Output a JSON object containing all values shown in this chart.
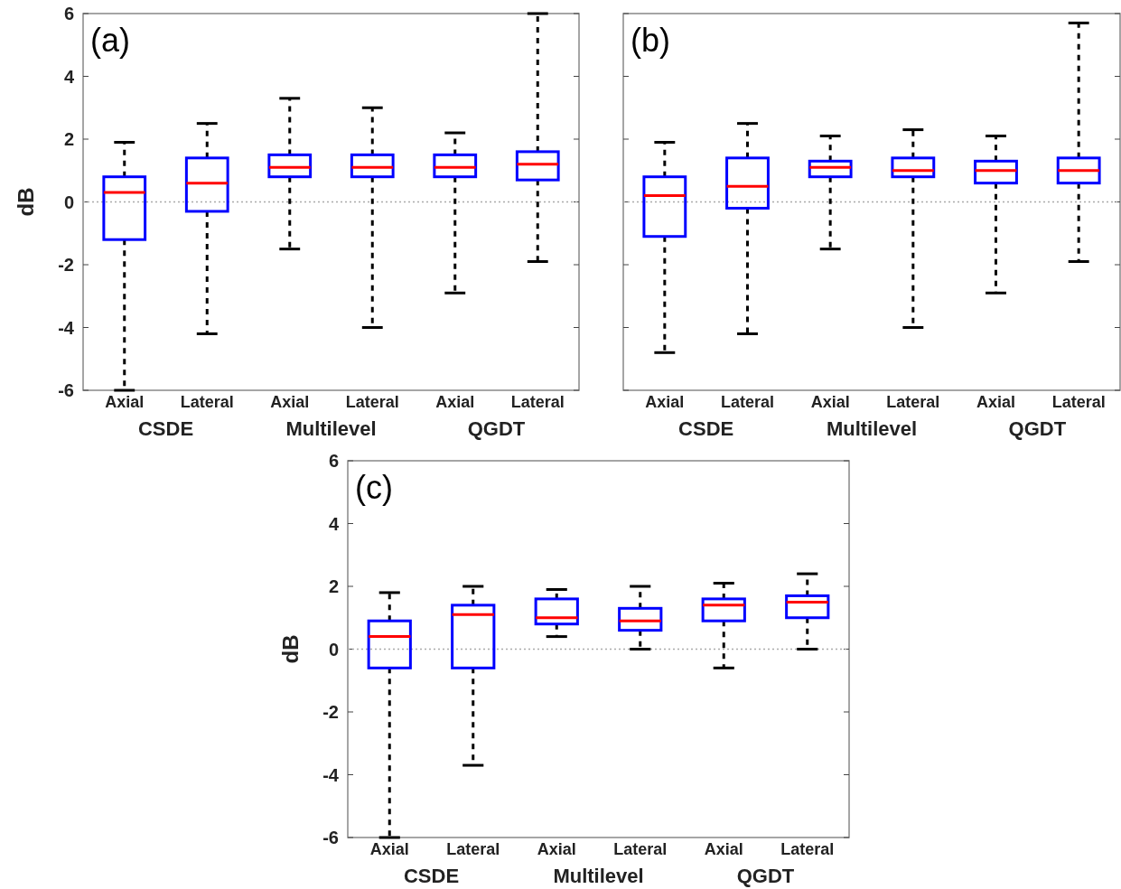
{
  "chart_data": [
    {
      "type": "box",
      "title": "(a)",
      "ylabel": "dB",
      "categories": [
        "Axial",
        "Lateral",
        "Axial",
        "Lateral",
        "Axial",
        "Lateral"
      ],
      "annotations": [
        "CSDE",
        "Multilevel",
        "QGDT"
      ],
      "ylim": [
        -6,
        6
      ],
      "yticks": [
        -6,
        -4,
        -2,
        0,
        2,
        4,
        6
      ],
      "ref_lines": [
        {
          "axis": "y",
          "value": 0,
          "line_style": "dotted",
          "color": "#aaaaaa"
        }
      ],
      "grid": false,
      "series": [
        {
          "color": "#0000ff",
          "boxes": [
            {
              "low": -6,
              "q1": -1.2,
              "median": 0.3,
              "q3": 0.8,
              "high": 1.9
            },
            {
              "low": -4.2,
              "q1": -0.3,
              "median": 0.6,
              "q3": 1.4,
              "high": 2.5
            },
            {
              "low": -1.5,
              "q1": 0.8,
              "median": 1.1,
              "q3": 1.5,
              "high": 3.3
            },
            {
              "low": -4.0,
              "q1": 0.8,
              "median": 1.1,
              "q3": 1.5,
              "high": 3.0
            },
            {
              "low": -2.9,
              "q1": 0.8,
              "median": 1.1,
              "q3": 1.5,
              "high": 2.2
            },
            {
              "low": -1.9,
              "q1": 0.7,
              "median": 1.2,
              "q3": 1.6,
              "high": 6
            }
          ]
        }
      ]
    },
    {
      "type": "box",
      "title": "(b)",
      "categories": [
        "Axial",
        "Lateral",
        "Axial",
        "Lateral",
        "Axial",
        "Lateral"
      ],
      "annotations": [
        "CSDE",
        "Multilevel",
        "QGDT"
      ],
      "ylim": [
        -6,
        6
      ],
      "yticks": [
        -6,
        -4,
        -2,
        0,
        2,
        4,
        6
      ],
      "tick_labels": "x",
      "ref_lines": [
        {
          "axis": "y",
          "value": 0,
          "line_style": "dotted",
          "color": "#aaaaaa"
        }
      ],
      "grid": false,
      "series": [
        {
          "color": "#0000ff",
          "boxes": [
            {
              "low": -4.8,
              "q1": -1.1,
              "median": 0.2,
              "q3": 0.8,
              "high": 1.9
            },
            {
              "low": -4.2,
              "q1": -0.2,
              "median": 0.5,
              "q3": 1.4,
              "high": 2.5
            },
            {
              "low": -1.5,
              "q1": 0.8,
              "median": 1.1,
              "q3": 1.3,
              "high": 2.1
            },
            {
              "low": -4.0,
              "q1": 0.8,
              "median": 1.0,
              "q3": 1.4,
              "high": 2.3
            },
            {
              "low": -2.9,
              "q1": 0.6,
              "median": 1.0,
              "q3": 1.3,
              "high": 2.1
            },
            {
              "low": -1.9,
              "q1": 0.6,
              "median": 1.0,
              "q3": 1.4,
              "high": 5.7
            }
          ]
        }
      ]
    },
    {
      "type": "box",
      "title": "(c)",
      "ylabel": "dB",
      "categories": [
        "Axial",
        "Lateral",
        "Axial",
        "Lateral",
        "Axial",
        "Lateral"
      ],
      "annotations": [
        "CSDE",
        "Multilevel",
        "QGDT"
      ],
      "ylim": [
        -6,
        6
      ],
      "yticks": [
        -6,
        -4,
        -2,
        0,
        2,
        4,
        6
      ],
      "ref_lines": [
        {
          "axis": "y",
          "value": 0,
          "line_style": "dotted",
          "color": "#aaaaaa"
        }
      ],
      "grid": false,
      "series": [
        {
          "color": "#0000ff",
          "boxes": [
            {
              "low": -6,
              "q1": -0.6,
              "median": 0.4,
              "q3": 0.9,
              "high": 1.8
            },
            {
              "low": -3.7,
              "q1": -0.6,
              "median": 1.1,
              "q3": 1.4,
              "high": 2.0
            },
            {
              "low": 0.4,
              "q1": 0.8,
              "median": 1.0,
              "q3": 1.6,
              "high": 1.9
            },
            {
              "low": 0.0,
              "q1": 0.6,
              "median": 0.9,
              "q3": 1.3,
              "high": 2.0
            },
            {
              "low": -0.6,
              "q1": 0.9,
              "median": 1.4,
              "q3": 1.6,
              "high": 2.1
            },
            {
              "low": 0.0,
              "q1": 1.0,
              "median": 1.5,
              "q3": 1.7,
              "high": 2.4
            }
          ]
        }
      ]
    }
  ]
}
